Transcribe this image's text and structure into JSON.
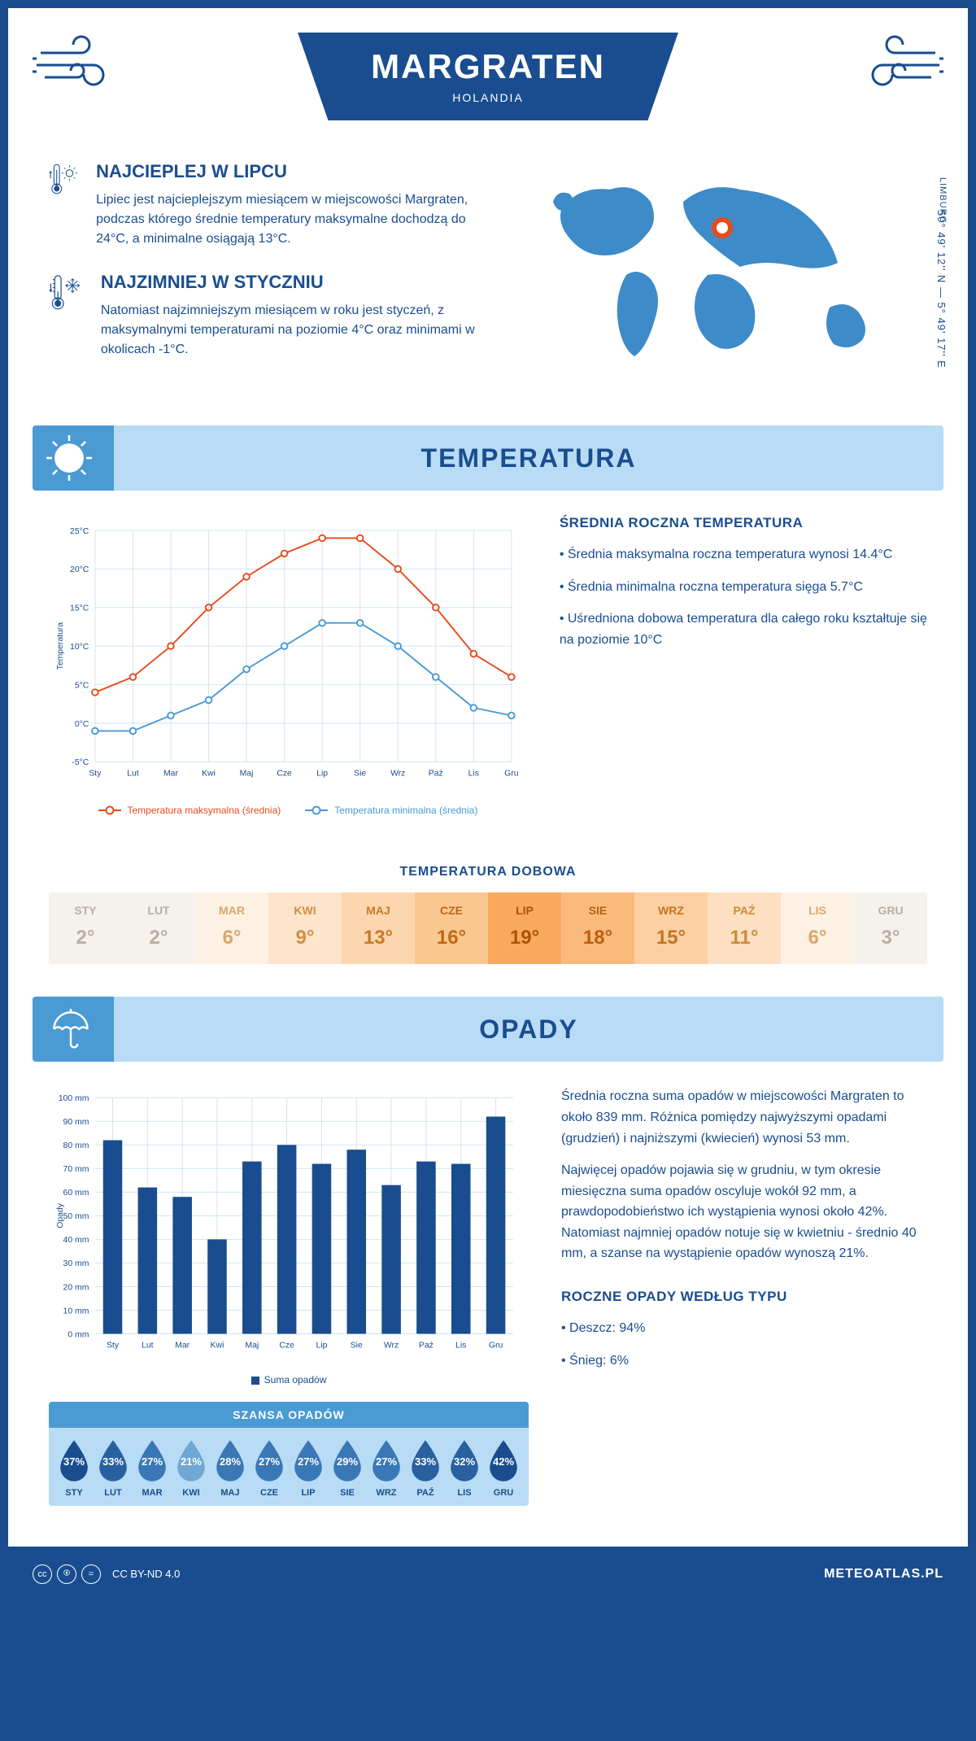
{
  "header": {
    "title": "MARGRATEN",
    "subtitle": "HOLANDIA"
  },
  "map": {
    "region": "LIMBURG",
    "coords": "50° 49' 12'' N — 5° 49' 17'' E",
    "marker_color": "#e84b1a"
  },
  "info_hot": {
    "title": "NAJCIEPLEJ W LIPCU",
    "text": "Lipiec jest najcieplejszym miesiącem w miejscowości Margraten, podczas którego średnie temperatury maksymalne dochodzą do 24°C, a minimalne osiągają 13°C."
  },
  "info_cold": {
    "title": "NAJZIMNIEJ W STYCZNIU",
    "text": "Natomiast najzimniejszym miesiącem w roku jest styczeń, z maksymalnymi temperaturami na poziomie 4°C oraz minimami w okolicach -1°C."
  },
  "section_temp": {
    "title": "TEMPERATURA"
  },
  "temp_chart": {
    "type": "line",
    "months": [
      "Sty",
      "Lut",
      "Mar",
      "Kwi",
      "Maj",
      "Cze",
      "Lip",
      "Sie",
      "Wrz",
      "Paź",
      "Lis",
      "Gru"
    ],
    "max_values": [
      4,
      6,
      10,
      15,
      19,
      22,
      24,
      24,
      20,
      15,
      9,
      6
    ],
    "min_values": [
      -1,
      -1,
      1,
      3,
      7,
      10,
      13,
      13,
      10,
      6,
      2,
      1
    ],
    "max_color": "#e84b1a",
    "min_color": "#4a9ad4",
    "ylim": [
      -5,
      25
    ],
    "ytick_step": 5,
    "y_labels": [
      "-5°C",
      "0°C",
      "5°C",
      "10°C",
      "15°C",
      "20°C",
      "25°C"
    ],
    "axis_label": "Temperatura",
    "grid_color": "#cfe4f2",
    "legend_max": "Temperatura maksymalna (średnia)",
    "legend_min": "Temperatura minimalna (średnia)"
  },
  "temp_summary": {
    "title": "ŚREDNIA ROCZNA TEMPERATURA",
    "items": [
      "Średnia maksymalna roczna temperatura wynosi 14.4°C",
      "Średnia minimalna roczna temperatura sięga 5.7°C",
      "Uśredniona dobowa temperatura dla całego roku kształtuje się na poziomie 10°C"
    ]
  },
  "daily_temp": {
    "title": "TEMPERATURA DOBOWA",
    "months": [
      "STY",
      "LUT",
      "MAR",
      "KWI",
      "MAJ",
      "CZE",
      "LIP",
      "SIE",
      "WRZ",
      "PAŹ",
      "LIS",
      "GRU"
    ],
    "values": [
      "2°",
      "2°",
      "6°",
      "9°",
      "13°",
      "16°",
      "19°",
      "18°",
      "15°",
      "11°",
      "6°",
      "3°"
    ],
    "bg_colors": [
      "#f5f1ec",
      "#f5f1ec",
      "#fdf1e4",
      "#fde4cb",
      "#fcd6ae",
      "#fbc791",
      "#f9a95e",
      "#faba7c",
      "#fcd0a3",
      "#fde0c1",
      "#fdf1e4",
      "#f5f1ec"
    ],
    "text_colors": [
      "#b8b0a4",
      "#b8b0a4",
      "#d9a86a",
      "#d08f45",
      "#c77a28",
      "#bf6816",
      "#b05200",
      "#b86010",
      "#c37420",
      "#cd8a3c",
      "#d9a86a",
      "#b8b0a4"
    ]
  },
  "section_precip": {
    "title": "OPADY"
  },
  "precip_chart": {
    "type": "bar",
    "months": [
      "Sty",
      "Lut",
      "Mar",
      "Kwi",
      "Maj",
      "Cze",
      "Lip",
      "Sie",
      "Wrz",
      "Paź",
      "Lis",
      "Gru"
    ],
    "values": [
      82,
      62,
      58,
      40,
      73,
      80,
      72,
      78,
      63,
      73,
      72,
      92
    ],
    "bar_color": "#1a4d8f",
    "ylim": [
      0,
      100
    ],
    "ytick_step": 10,
    "y_labels": [
      "0 mm",
      "10 mm",
      "20 mm",
      "30 mm",
      "40 mm",
      "50 mm",
      "60 mm",
      "70 mm",
      "80 mm",
      "90 mm",
      "100 mm"
    ],
    "axis_label": "Opady",
    "grid_color": "#cfe4f2",
    "legend": "Suma opadów"
  },
  "precip_text": {
    "p1": "Średnia roczna suma opadów w miejscowości Margraten to około 839 mm. Różnica pomiędzy najwyższymi opadami (grudzień) i najniższymi (kwiecień) wynosi 53 mm.",
    "p2": "Najwięcej opadów pojawia się w grudniu, w tym okresie miesięczna suma opadów oscyluje wokół 92 mm, a prawdopodobieństwo ich wystąpienia wynosi około 42%. Natomiast najmniej opadów notuje się w kwietniu - średnio 40 mm, a szanse na wystąpienie opadów wynoszą 21%."
  },
  "chance": {
    "title": "SZANSA OPADÓW",
    "months": [
      "STY",
      "LUT",
      "MAR",
      "KWI",
      "MAJ",
      "CZE",
      "LIP",
      "SIE",
      "WRZ",
      "PAŹ",
      "LIS",
      "GRU"
    ],
    "values": [
      "37%",
      "33%",
      "27%",
      "21%",
      "28%",
      "27%",
      "27%",
      "29%",
      "27%",
      "33%",
      "32%",
      "42%"
    ],
    "colors": [
      "#1a4d8f",
      "#2860a0",
      "#3a77b6",
      "#6fa8d4",
      "#3a77b6",
      "#3a77b6",
      "#3a77b6",
      "#3a77b6",
      "#3a77b6",
      "#2860a0",
      "#2860a0",
      "#1a4d8f"
    ]
  },
  "precip_type": {
    "title": "ROCZNE OPADY WEDŁUG TYPU",
    "items": [
      "Deszcz: 94%",
      "Śnieg: 6%"
    ]
  },
  "footer": {
    "license": "CC BY-ND 4.0",
    "site": "METEOATLAS.PL"
  },
  "colors": {
    "primary": "#1a4d8f",
    "light_blue": "#b8dcf5",
    "mid_blue": "#4a9ad4",
    "orange": "#e84b1a"
  }
}
